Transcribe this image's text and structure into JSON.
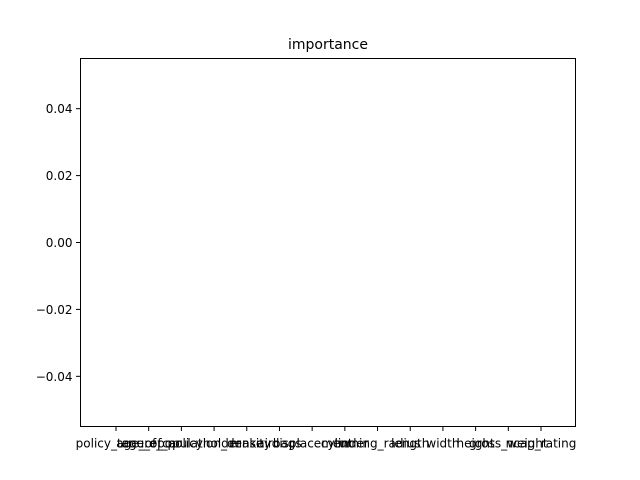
{
  "chart_data": {
    "type": "bar",
    "title": "importance",
    "xlabel": "",
    "ylabel": "",
    "categories": [
      "policy_tenure",
      "age_of_car",
      "age_of_policyholder",
      "population_density",
      "make",
      "airbags",
      "displacement",
      "cylinder",
      "turning_radius",
      "length",
      "width",
      "height",
      "gross_weight",
      "ncap_rating"
    ],
    "values": [
      0,
      0,
      0,
      0,
      0,
      0,
      0,
      0,
      0,
      0,
      0,
      0,
      0,
      0
    ],
    "ylim": [
      -0.055,
      0.055
    ],
    "yticks": [
      -0.04,
      -0.02,
      0.0,
      0.02,
      0.04
    ],
    "ytick_labels": [
      "−0.04",
      "−0.02",
      "0.00",
      "0.02",
      "0.04"
    ],
    "grid": false,
    "colors": {
      "bar": "#1f77b4",
      "axes": "#000000",
      "background": "#ffffff"
    }
  }
}
